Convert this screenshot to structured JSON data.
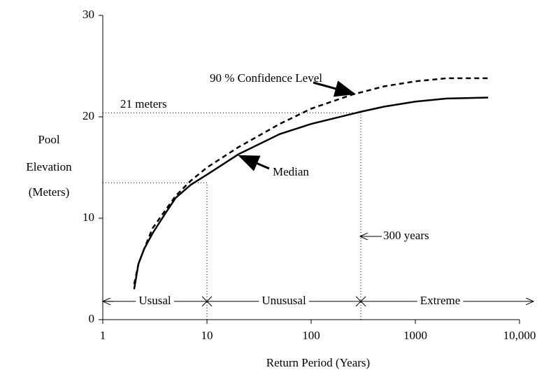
{
  "chart_data": {
    "type": "line",
    "xlabel": "Return Period (Years)",
    "ylabel": [
      "Pool",
      "Elevation",
      "(Meters)"
    ],
    "xscale": "log",
    "xlim": [
      1,
      10000
    ],
    "ylim": [
      0,
      30
    ],
    "xticks": [
      1,
      10,
      100,
      1000,
      {
        "value": 10000,
        "label": "10,000"
      }
    ],
    "yticks": [
      0,
      10,
      20,
      30
    ],
    "series": [
      {
        "name": "Median",
        "color": "#000000",
        "style": "solid",
        "x": [
          2,
          2.2,
          2.5,
          3,
          4,
          5,
          7,
          10,
          20,
          50,
          100,
          300,
          500,
          1000,
          2000,
          5000
        ],
        "values": [
          3,
          5.5,
          7,
          8.5,
          10.5,
          12,
          13.3,
          14.3,
          16.3,
          18.3,
          19.3,
          20.5,
          21,
          21.5,
          21.8,
          21.9
        ]
      },
      {
        "name": "90 % Confidence Level",
        "color": "#000000",
        "style": "dashed",
        "x": [
          2,
          2.2,
          2.5,
          3,
          5,
          7,
          10,
          20,
          50,
          100,
          250,
          500,
          1000,
          2000,
          5000
        ],
        "values": [
          3.5,
          5.5,
          7,
          9,
          12.2,
          13.7,
          15,
          17,
          19.3,
          20.8,
          22.2,
          23,
          23.5,
          23.8,
          23.8
        ]
      }
    ],
    "reference_lines": [
      {
        "x": 300,
        "y": 20.4
      },
      {
        "x": 10,
        "y": 13.5
      }
    ],
    "annotations": {
      "elevation": "21 meters",
      "period": "300 years"
    },
    "regions": [
      {
        "label": "Ususal",
        "from": 1,
        "to": 10
      },
      {
        "label": "Unususal",
        "from": 10,
        "to": 300
      },
      {
        "label": "Extreme",
        "from": 300,
        "to": 10000
      }
    ],
    "region_level": 1.8
  }
}
